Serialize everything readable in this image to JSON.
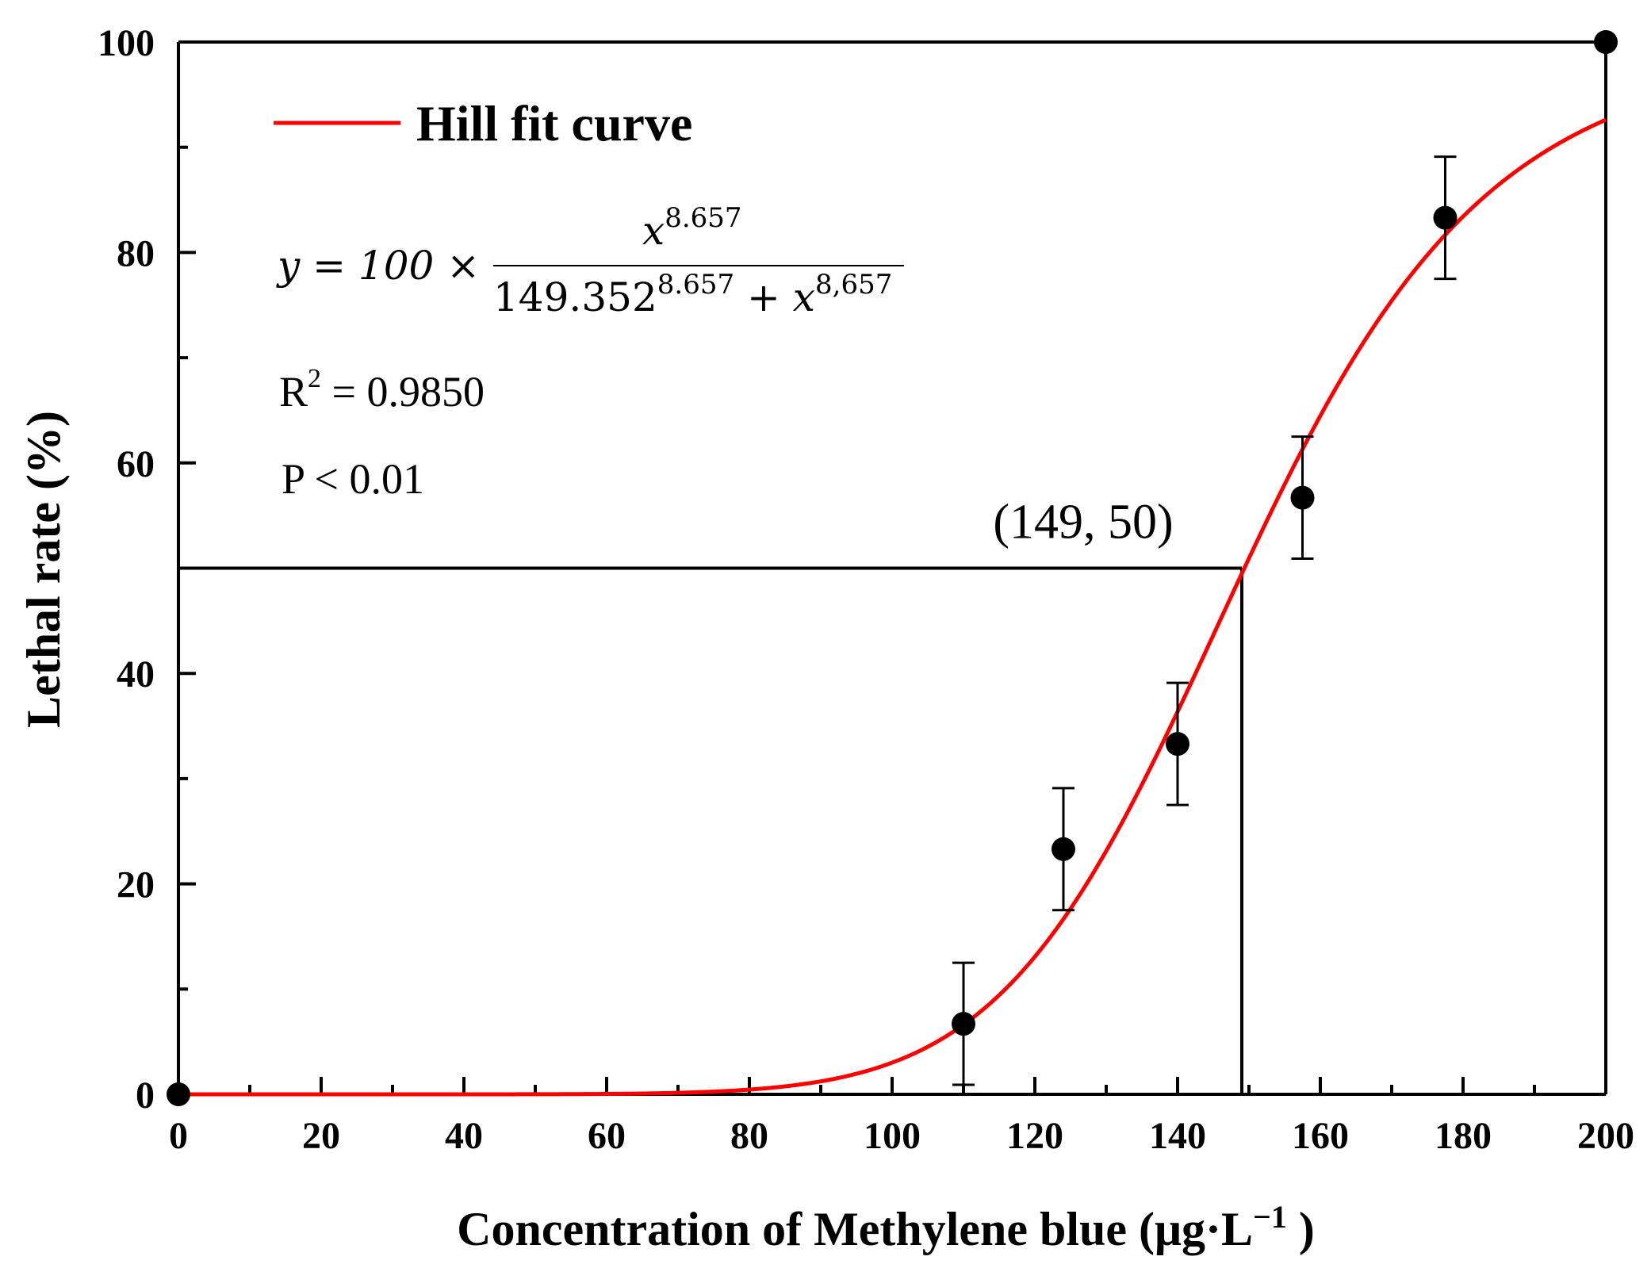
{
  "chart_data": {
    "type": "scatter",
    "xlabel_main": "Concentration of Methylene blue (μg·L",
    "xlabel_sup": "−1",
    "xlabel_end": " )",
    "ylabel": "Lethal rate (%)",
    "xlim": [
      0,
      200
    ],
    "ylim": [
      0,
      100
    ],
    "xticks": [
      0,
      20,
      40,
      60,
      80,
      100,
      120,
      140,
      160,
      180,
      200
    ],
    "yticks": [
      0,
      20,
      40,
      60,
      80,
      100
    ],
    "xtick_labels": [
      "0",
      "20",
      "40",
      "60",
      "80",
      "100",
      "120",
      "140",
      "160",
      "180",
      "200"
    ],
    "ytick_labels": [
      "0",
      "20",
      "40",
      "60",
      "80",
      "100"
    ],
    "points": [
      {
        "x": 0,
        "y": 0,
        "err": 0
      },
      {
        "x": 110,
        "y": 6.7,
        "err": 5.8
      },
      {
        "x": 124,
        "y": 23.3,
        "err": 5.8
      },
      {
        "x": 140,
        "y": 33.3,
        "err": 5.8
      },
      {
        "x": 157.5,
        "y": 56.7,
        "err": 5.8
      },
      {
        "x": 177.5,
        "y": 83.3,
        "err": 5.8
      },
      {
        "x": 200,
        "y": 100,
        "err": 0
      }
    ],
    "fit": {
      "type": "hill",
      "top": 100,
      "k": 149.352,
      "n": 8.657,
      "color": "#ff0000"
    },
    "legend": {
      "label": "Hill fit curve",
      "color": "#ff0000"
    },
    "equation": {
      "lhs": "y = 100 ×",
      "numerator_base": "x",
      "numerator_exp": "8.657",
      "denominator_base": "149.352",
      "denominator_exp1": "8.657",
      "denominator_plus": " + x",
      "denominator_exp2": "8,657"
    },
    "r2_prefix": "R",
    "r2_sup": "2",
    "r2_value": " = 0.9850",
    "p_text": "P < 0.01",
    "annotation": {
      "label": "(149, 50)",
      "x": 149,
      "y": 50
    }
  }
}
